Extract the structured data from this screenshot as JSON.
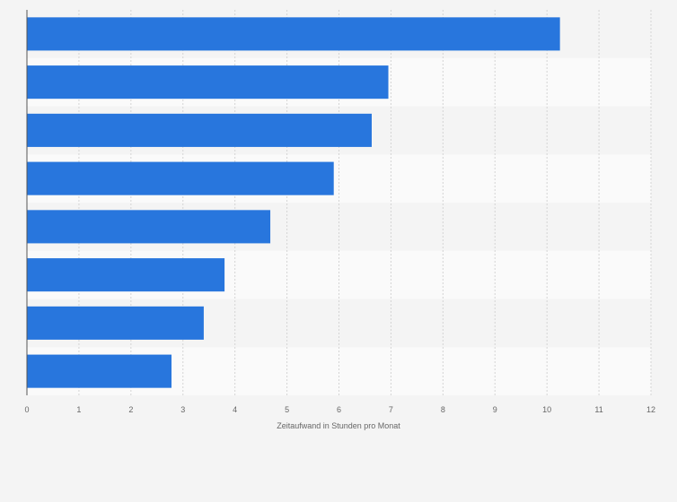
{
  "chart_data": {
    "type": "bar",
    "orientation": "horizontal",
    "title": "",
    "xlabel": "Zeitaufwand in Stunden pro Monat",
    "ylabel": "",
    "categories": [
      "",
      "",
      "",
      "",
      "",
      "",
      "",
      ""
    ],
    "values": [
      10.25,
      6.95,
      6.63,
      5.9,
      4.68,
      3.8,
      3.4,
      2.78
    ],
    "xlim": [
      0,
      12
    ],
    "xticks": [
      "0",
      "1",
      "2",
      "3",
      "4",
      "5",
      "6",
      "7",
      "8",
      "9",
      "10",
      "11",
      "12"
    ],
    "grid": true,
    "legend": "none",
    "bar_color": "#2876dd",
    "band_colors": [
      "#f4f4f4",
      "#fafafa"
    ]
  }
}
